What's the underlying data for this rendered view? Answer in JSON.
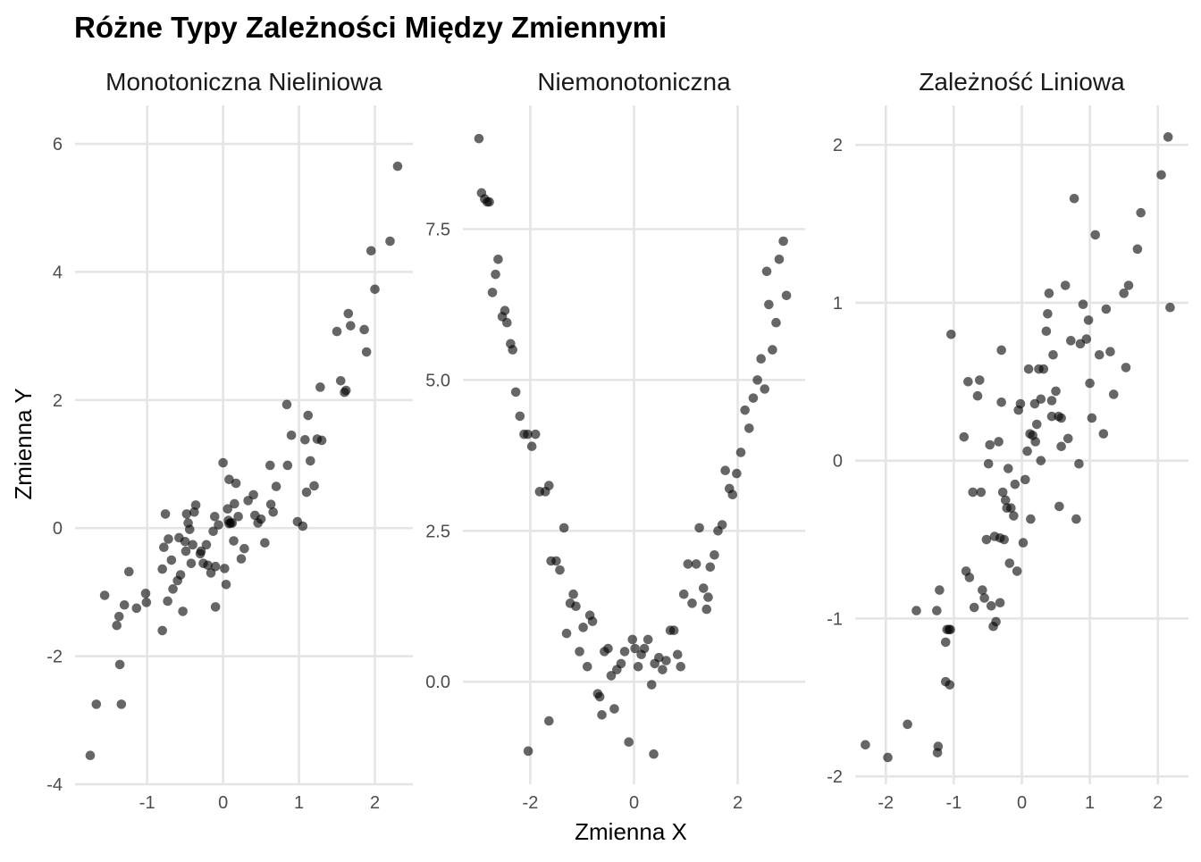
{
  "title": "Różne Typy Zależności Między Zmiennymi",
  "xlabel": "Zmienna X",
  "ylabel": "Zmienna Y",
  "chart_data": [
    {
      "type": "scatter",
      "title": "Monotoniczna Nieliniowa",
      "xlim": [
        -1.95,
        2.5
      ],
      "ylim": [
        -4,
        6.6
      ],
      "xticks": [
        -1,
        0,
        1,
        2
      ],
      "xtick_labels": [
        "-1",
        "0",
        "1",
        "2"
      ],
      "yticks": [
        -4,
        -2,
        0,
        2,
        4,
        6
      ],
      "ytick_labels": [
        "-4",
        "-2",
        "0",
        "2",
        "4",
        "6"
      ],
      "grid": true,
      "x": [
        -1.75,
        -1.67,
        -1.56,
        -1.4,
        -1.37,
        -1.36,
        -1.34,
        -1.3,
        -1.24,
        -1.14,
        -1.02,
        -1.01,
        -0.8,
        -0.8,
        -0.78,
        -0.76,
        -0.73,
        -0.72,
        -0.68,
        -0.66,
        -0.6,
        -0.58,
        -0.56,
        -0.53,
        -0.5,
        -0.49,
        -0.48,
        -0.46,
        -0.44,
        -0.42,
        -0.4,
        -0.38,
        -0.36,
        -0.3,
        -0.29,
        -0.26,
        -0.22,
        -0.2,
        -0.16,
        -0.13,
        -0.11,
        -0.1,
        -0.06,
        0.0,
        0.02,
        0.04,
        0.06,
        0.07,
        0.08,
        0.1,
        0.12,
        0.14,
        0.17,
        0.2,
        0.24,
        0.28,
        0.33,
        0.4,
        0.42,
        0.46,
        0.5,
        0.55,
        0.62,
        0.63,
        0.66,
        0.7,
        0.84,
        0.85,
        0.9,
        0.98,
        1.05,
        1.08,
        1.1,
        1.12,
        1.15,
        1.2,
        1.24,
        1.28,
        1.3,
        1.5,
        1.55,
        1.6,
        1.62,
        1.65,
        1.68,
        1.86,
        1.89,
        1.95,
        2.0,
        2.2,
        2.3,
        -0.1,
        0.08,
        0.15
      ],
      "y": [
        -3.55,
        -2.75,
        -1.05,
        -1.52,
        -1.38,
        -2.13,
        -2.75,
        -1.2,
        -0.68,
        -1.25,
        -1.02,
        -1.16,
        -1.6,
        -0.64,
        -0.3,
        0.22,
        -1.14,
        -0.17,
        -0.5,
        -0.95,
        -0.82,
        -0.15,
        -0.73,
        -1.3,
        -0.21,
        -0.36,
        0.22,
        0.08,
        -0.02,
        -0.55,
        -0.26,
        0.25,
        0.36,
        -0.4,
        -0.36,
        -0.55,
        -0.26,
        -0.58,
        -0.7,
        -0.05,
        0.18,
        -0.6,
        0.05,
        1.02,
        -0.63,
        -0.88,
        0.3,
        0.12,
        0.76,
        0.08,
        0.08,
        -0.2,
        0.7,
        0.18,
        -0.48,
        -0.32,
        0.43,
        0.52,
        0.2,
        0.08,
        0.14,
        -0.23,
        0.98,
        0.37,
        0.25,
        0.65,
        1.93,
        0.98,
        1.45,
        0.1,
        0.03,
        1.38,
        0.56,
        1.76,
        1.05,
        0.66,
        1.39,
        2.2,
        1.37,
        3.07,
        2.3,
        2.12,
        2.15,
        3.35,
        3.16,
        3.1,
        2.75,
        4.33,
        3.73,
        4.48,
        5.65,
        -1.23,
        0.07,
        0.38
      ]
    },
    {
      "type": "scatter",
      "title": "Niemonotoniczna",
      "xlim": [
        -3.3,
        3.3
      ],
      "ylim": [
        -1.7,
        9.55
      ],
      "xticks": [
        -2,
        0,
        2
      ],
      "xtick_labels": [
        "-2",
        "0",
        "2"
      ],
      "yticks": [
        0.0,
        2.5,
        5.0,
        7.5
      ],
      "ytick_labels": [
        "0.0",
        "2.5",
        "5.0",
        "7.5"
      ],
      "grid": true,
      "x": [
        -2.99,
        -2.94,
        -2.88,
        -2.83,
        -2.79,
        -2.73,
        -2.67,
        -2.62,
        -2.54,
        -2.49,
        -2.45,
        -2.38,
        -2.34,
        -2.28,
        -2.2,
        -2.12,
        -2.05,
        -1.97,
        -1.9,
        -1.82,
        -1.71,
        -1.64,
        -1.6,
        -1.5,
        -1.43,
        -1.35,
        -1.3,
        -1.23,
        -1.17,
        -1.12,
        -1.05,
        -0.98,
        -0.9,
        -0.85,
        -0.8,
        -0.7,
        -0.62,
        -0.57,
        -0.5,
        -0.44,
        -0.38,
        -0.33,
        -0.25,
        -0.18,
        -0.1,
        -0.03,
        0.02,
        0.08,
        0.14,
        0.2,
        0.27,
        0.34,
        0.4,
        0.48,
        0.55,
        0.62,
        0.7,
        0.77,
        0.84,
        0.9,
        0.96,
        1.04,
        1.12,
        1.2,
        1.26,
        1.34,
        1.4,
        1.47,
        1.55,
        1.62,
        1.7,
        1.76,
        1.84,
        1.9,
        1.98,
        2.06,
        2.14,
        2.22,
        2.3,
        2.38,
        2.45,
        2.52,
        2.6,
        2.67,
        2.74,
        2.8,
        2.88,
        2.94,
        -2.04,
        -1.64,
        -0.66,
        0.38,
        1.43,
        2.56
      ],
      "y": [
        9.0,
        8.1,
        8.0,
        7.95,
        7.95,
        6.45,
        6.75,
        7.0,
        6.05,
        6.15,
        5.95,
        5.6,
        5.5,
        4.8,
        4.4,
        4.1,
        4.1,
        3.9,
        4.1,
        3.15,
        3.15,
        3.25,
        2.0,
        2.0,
        1.85,
        2.55,
        0.8,
        1.3,
        1.45,
        1.25,
        0.5,
        0.9,
        0.25,
        1.1,
        1.0,
        -0.2,
        -0.55,
        0.5,
        0.55,
        0.1,
        -0.45,
        0.2,
        0.3,
        0.5,
        -1.0,
        0.7,
        0.55,
        0.25,
        0.45,
        0.55,
        0.7,
        -0.05,
        0.3,
        0.4,
        0.2,
        0.35,
        0.85,
        0.85,
        0.45,
        0.25,
        1.45,
        1.95,
        1.3,
        1.95,
        2.55,
        1.55,
        1.2,
        1.9,
        2.1,
        2.5,
        2.6,
        3.5,
        3.2,
        3.1,
        3.45,
        3.8,
        4.5,
        4.2,
        4.7,
        5.0,
        5.35,
        4.85,
        6.25,
        5.5,
        5.95,
        7.0,
        7.3,
        6.4,
        -1.15,
        -0.65,
        -0.25,
        -1.2,
        1.4,
        6.8
      ]
    },
    {
      "type": "scatter",
      "title": "Zależność Liniowa",
      "xlim": [
        -2.45,
        2.45
      ],
      "ylim": [
        -2.05,
        2.25
      ],
      "xticks": [
        -2,
        -1,
        0,
        1,
        2
      ],
      "xtick_labels": [
        "-2",
        "-1",
        "0",
        "1",
        "2"
      ],
      "yticks": [
        -2,
        -1,
        0,
        1,
        2
      ],
      "ytick_labels": [
        "-2",
        "-1",
        "0",
        "1",
        "2"
      ],
      "grid": true,
      "x": [
        -2.3,
        -1.97,
        -1.68,
        -1.55,
        -1.24,
        -1.23,
        -1.21,
        -1.12,
        -1.12,
        -1.1,
        -1.07,
        -1.06,
        -1.05,
        -1.04,
        -0.82,
        -0.79,
        -0.77,
        -0.72,
        -0.7,
        -0.62,
        -0.6,
        -0.58,
        -0.52,
        -0.49,
        -0.47,
        -0.45,
        -0.42,
        -0.4,
        -0.38,
        -0.34,
        -0.32,
        -0.3,
        -0.28,
        -0.26,
        -0.24,
        -0.22,
        -0.2,
        -0.18,
        -0.16,
        -0.12,
        -0.07,
        -0.05,
        -0.02,
        0.02,
        0.05,
        0.08,
        0.1,
        0.13,
        0.16,
        0.19,
        0.22,
        0.25,
        0.28,
        0.32,
        0.36,
        0.38,
        0.4,
        0.44,
        0.46,
        0.5,
        0.54,
        0.58,
        0.64,
        0.68,
        0.72,
        0.77,
        0.8,
        0.86,
        0.9,
        0.95,
        0.98,
        1.03,
        1.08,
        1.14,
        1.2,
        1.24,
        1.3,
        1.35,
        1.5,
        1.53,
        1.57,
        1.7,
        1.75,
        2.05,
        2.15,
        2.18,
        -1.25,
        -0.32,
        0.44,
        0.84,
        1.0,
        -0.1,
        0.55,
        -0.85,
        -0.55,
        -0.3,
        0.12,
        0.28,
        -0.65,
        0.2,
        0.58
      ],
      "y": [
        -1.8,
        -1.88,
        -1.67,
        -0.95,
        -1.85,
        -1.81,
        -0.82,
        -1.15,
        -1.4,
        -1.07,
        -1.07,
        -1.42,
        -1.07,
        0.8,
        -0.7,
        0.5,
        -0.74,
        -0.2,
        -0.93,
        0.51,
        -0.2,
        -0.82,
        -0.5,
        -0.02,
        0.1,
        -0.92,
        -1.05,
        -0.48,
        -1.02,
        0.12,
        -0.9,
        0.7,
        -0.2,
        -0.5,
        -0.25,
        -0.3,
        -0.05,
        -0.65,
        -0.3,
        -0.35,
        -0.7,
        0.32,
        0.36,
        -0.52,
        -0.12,
        0.06,
        0.58,
        -0.37,
        0.16,
        0.36,
        0.23,
        0.58,
        0.39,
        0.58,
        0.82,
        0.93,
        1.06,
        0.28,
        0.67,
        0.44,
        0.28,
        0.27,
        1.11,
        0.14,
        0.76,
        1.66,
        -0.37,
        0.74,
        0.99,
        0.77,
        0.89,
        0.27,
        1.43,
        0.67,
        0.17,
        0.96,
        0.69,
        0.42,
        1.06,
        0.59,
        1.11,
        1.34,
        1.57,
        1.81,
        2.05,
        0.97,
        -0.95,
        -0.49,
        0.38,
        -0.02,
        0.49,
        -0.15,
        -0.29,
        0.15,
        -0.87,
        0.37,
        0.17,
        0.0,
        0.41,
        0.12,
        0.09
      ]
    }
  ]
}
